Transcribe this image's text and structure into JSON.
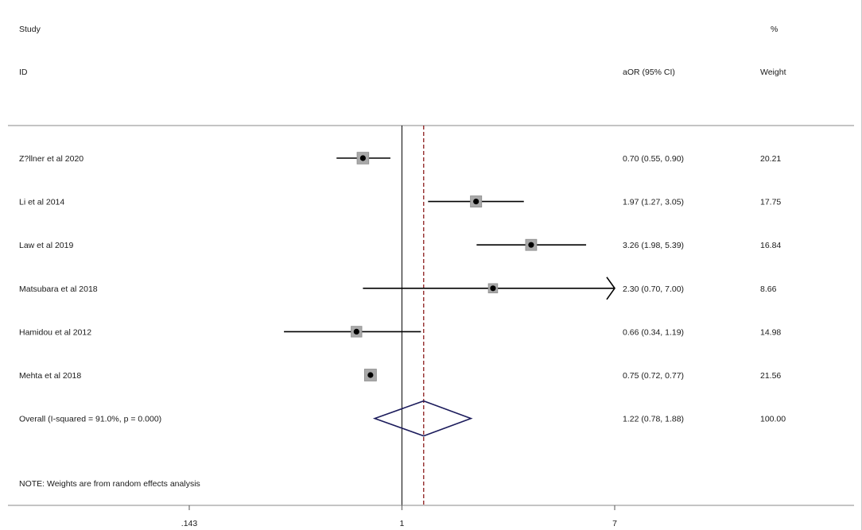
{
  "chart_data": {
    "type": "forest",
    "headers": {
      "study_top": "Study",
      "study_bottom": "ID",
      "effect": "aOR (95% CI)",
      "weight_top": "%",
      "weight_bottom": "Weight"
    },
    "studies": [
      {
        "label": "Z?llner et al 2020",
        "or": 0.7,
        "lo": 0.55,
        "hi": 0.9,
        "ci_text": "0.70 (0.55, 0.90)",
        "weight_text": "20.21",
        "weight": 20.21
      },
      {
        "label": "Li et al 2014",
        "or": 1.97,
        "lo": 1.27,
        "hi": 3.05,
        "ci_text": "1.97 (1.27, 3.05)",
        "weight_text": "17.75",
        "weight": 17.75
      },
      {
        "label": "Law et al 2019",
        "or": 3.26,
        "lo": 1.98,
        "hi": 5.39,
        "ci_text": "3.26 (1.98, 5.39)",
        "weight_text": "16.84",
        "weight": 16.84
      },
      {
        "label": "Matsubara et al 2018",
        "or": 2.3,
        "lo": 0.7,
        "hi": 7.0,
        "ci_text": "2.30 (0.70, 7.00)",
        "weight_text": "8.66",
        "weight": 8.66
      },
      {
        "label": "Hamidou et al 2012",
        "or": 0.66,
        "lo": 0.34,
        "hi": 1.19,
        "ci_text": "0.66 (0.34, 1.19)",
        "weight_text": "14.98",
        "weight": 14.98
      },
      {
        "label": "Mehta et al 2018",
        "or": 0.75,
        "lo": 0.72,
        "hi": 0.77,
        "ci_text": "0.75 (0.72, 0.77)",
        "weight_text": "21.56",
        "weight": 21.56
      }
    ],
    "overall": {
      "label": "Overall  (I-squared = 91.0%, p = 0.000)",
      "or": 1.22,
      "lo": 0.78,
      "hi": 1.88,
      "ci_text": "1.22 (0.78, 1.88)",
      "weight_text": "100.00"
    },
    "note": "NOTE: Weights are from random effects analysis",
    "x_scale": "log",
    "xlim": [
      0.143,
      7
    ],
    "ticks": [
      {
        "value": 0.143,
        "label": ".143"
      },
      {
        "value": 1,
        "label": "1"
      },
      {
        "value": 7,
        "label": "7"
      }
    ],
    "null_line": 1,
    "colors": {
      "ci_line": "#000000",
      "point": "#000000",
      "weight_box": "#a9a9a9",
      "diamond": "#1c1c5c",
      "overall_line": "#8b1a1a",
      "separator": "#8a8a8a"
    }
  }
}
